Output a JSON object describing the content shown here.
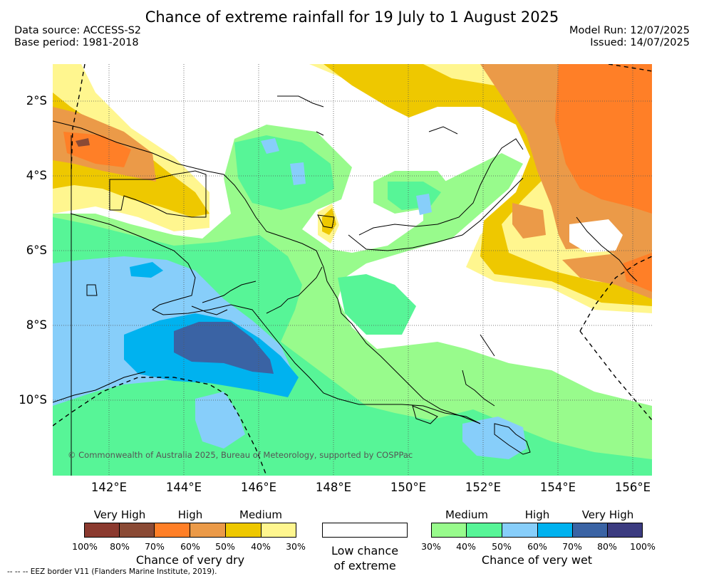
{
  "header": {
    "title": "Chance of extreme rainfall for 19 July to 1 August 2025",
    "data_source": "Data source: ACCESS-S2",
    "base_period": "Base period: 1981-2018",
    "model_run": "Model Run: 12/07/2025",
    "issued": "Issued: 14/07/2025"
  },
  "map": {
    "lat_labels": [
      "2°S",
      "4°S",
      "6°S",
      "8°S",
      "10°S"
    ],
    "lon_labels": [
      "142°E",
      "144°E",
      "146°E",
      "148°E",
      "150°E",
      "152°E",
      "154°E",
      "156°E"
    ],
    "credit": "© Commonwealth of Australia 2025, Bureau of Meteorology, supported by COSPPac"
  },
  "legend": {
    "dry": {
      "headers": [
        "Very High",
        "High",
        "Medium"
      ],
      "colors": [
        "#8b3a2f",
        "#8a4a35",
        "#ff7f27",
        "#eb9a48",
        "#eec800",
        "#fff68f"
      ],
      "ticks": [
        "100%",
        "80%",
        "70%",
        "60%",
        "50%",
        "40%",
        "30%"
      ],
      "title": "Chance of very dry"
    },
    "low": {
      "title_line1": "Low chance",
      "title_line2": "of extreme",
      "color": "#ffffff"
    },
    "wet": {
      "headers": [
        "Medium",
        "High",
        "Very High"
      ],
      "colors": [
        "#98fb8c",
        "#57f597",
        "#87cefa",
        "#00b2ef",
        "#3a63a4",
        "#3b3b80"
      ],
      "ticks": [
        "30%",
        "40%",
        "50%",
        "60%",
        "70%",
        "80%",
        "100%"
      ],
      "title": "Chance of very wet"
    }
  },
  "footnote": "-- -- -- EEZ border V11 (Flanders Marine Institute, 2019)."
}
